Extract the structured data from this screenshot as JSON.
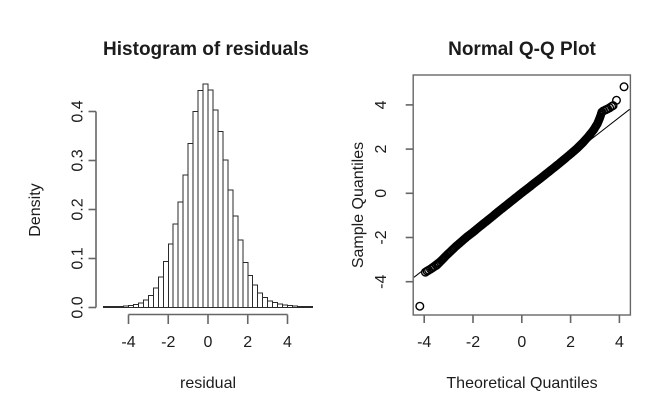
{
  "figure": {
    "background": "#ffffff",
    "axis_color": "#666666",
    "text_color": "#1c1c1c",
    "bar_fill": "#ffffff",
    "bar_stroke": "#2a2a2a",
    "point_stroke": "#000000"
  },
  "chart_data": [
    {
      "type": "bar",
      "title": "Histogram of residuals",
      "xlabel": "residual",
      "ylabel": "Density",
      "x_ticks": [
        "-4",
        "-2",
        "0",
        "2",
        "4"
      ],
      "x_tick_values": [
        -4,
        -2,
        0,
        2,
        4
      ],
      "y_ticks": [
        "0.0",
        "0.1",
        "0.2",
        "0.3",
        "0.4"
      ],
      "y_tick_values": [
        0.0,
        0.1,
        0.2,
        0.3,
        0.4
      ],
      "xlim": [
        -5.3,
        5.3
      ],
      "ylim": [
        0,
        0.46
      ],
      "grid": "off",
      "bin_start": -5.25,
      "bin_width": 0.25,
      "densities": [
        0.0015,
        0.0015,
        0.002,
        0.0025,
        0.003,
        0.004,
        0.006,
        0.009,
        0.015,
        0.024,
        0.04,
        0.062,
        0.094,
        0.13,
        0.17,
        0.215,
        0.27,
        0.335,
        0.4,
        0.443,
        0.456,
        0.444,
        0.403,
        0.359,
        0.301,
        0.24,
        0.187,
        0.138,
        0.092,
        0.065,
        0.046,
        0.03,
        0.02,
        0.013,
        0.01,
        0.007,
        0.005,
        0.004,
        0.003,
        0.0025,
        0.002,
        0.002
      ]
    },
    {
      "type": "scatter",
      "title": "Normal Q-Q Plot",
      "xlabel": "Theoretical Quantiles",
      "ylabel": "Sample Quantiles",
      "x_ticks": [
        "-4",
        "-2",
        "0",
        "2",
        "4"
      ],
      "x_tick_values": [
        -4,
        -2,
        0,
        2,
        4
      ],
      "y_ticks": [
        "-4",
        "-2",
        "0",
        "2",
        "4"
      ],
      "y_tick_values": [
        -4,
        -2,
        0,
        2,
        4
      ],
      "xlim": [
        -4.45,
        4.45
      ],
      "ylim": [
        -5.5,
        5.4
      ],
      "grid": "off",
      "marker": "open-circle",
      "reference_line": {
        "slope": 0.86,
        "intercept": 0
      },
      "dense_band": [
        [
          -3.45,
          -3.22
        ],
        [
          -3.3,
          -3.05
        ],
        [
          -3.1,
          -2.82
        ],
        [
          -2.9,
          -2.61
        ],
        [
          -2.7,
          -2.4
        ],
        [
          -2.5,
          -2.21
        ],
        [
          -2.25,
          -1.97
        ],
        [
          -2.0,
          -1.76
        ],
        [
          -1.75,
          -1.53
        ],
        [
          -1.5,
          -1.31
        ],
        [
          -1.25,
          -1.09
        ],
        [
          -1.0,
          -0.86
        ],
        [
          -0.75,
          -0.64
        ],
        [
          -0.5,
          -0.42
        ],
        [
          -0.25,
          -0.2
        ],
        [
          0,
          0.02
        ],
        [
          0.25,
          0.23
        ],
        [
          0.5,
          0.45
        ],
        [
          0.75,
          0.66
        ],
        [
          1.0,
          0.88
        ],
        [
          1.25,
          1.1
        ],
        [
          1.5,
          1.32
        ],
        [
          1.75,
          1.55
        ],
        [
          2.0,
          1.78
        ],
        [
          2.25,
          2.02
        ],
        [
          2.5,
          2.29
        ],
        [
          2.75,
          2.6
        ],
        [
          2.95,
          2.88
        ],
        [
          3.1,
          3.15
        ],
        [
          3.2,
          3.42
        ],
        [
          3.28,
          3.68
        ]
      ],
      "outlier_points": [
        [
          -4.18,
          -5.11
        ],
        [
          -3.95,
          -3.57
        ],
        [
          -3.88,
          -3.52
        ],
        [
          -3.82,
          -3.48
        ],
        [
          -3.74,
          -3.43
        ],
        [
          -3.66,
          -3.37
        ],
        [
          -3.58,
          -3.31
        ],
        [
          -3.5,
          -3.26
        ],
        [
          3.35,
          3.73
        ],
        [
          3.44,
          3.78
        ],
        [
          3.52,
          3.82
        ],
        [
          3.6,
          3.87
        ],
        [
          3.68,
          3.93
        ],
        [
          3.74,
          3.97
        ],
        [
          3.88,
          4.21
        ],
        [
          4.19,
          4.82
        ]
      ]
    }
  ]
}
